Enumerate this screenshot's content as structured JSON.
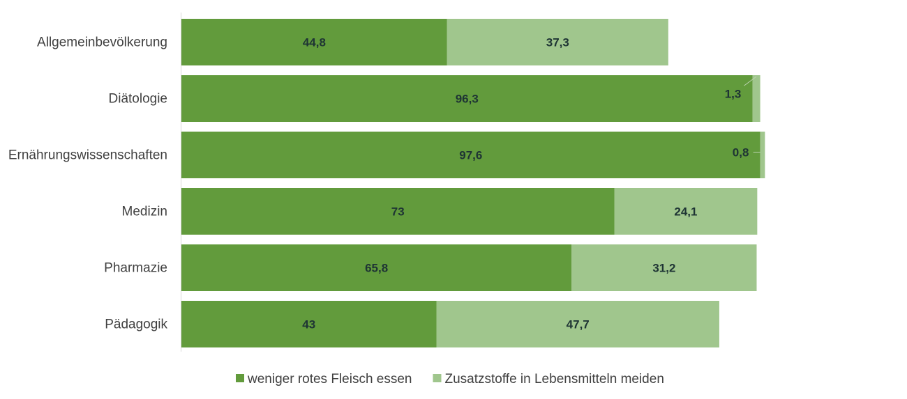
{
  "chart_data": {
    "type": "bar",
    "orientation": "horizontal",
    "stacked": true,
    "categories": [
      "Allgemeinbevölkerung",
      "Diätologie",
      "Ernährungswissenschaften",
      "Medizin",
      "Pharmazie",
      "Pädagogik"
    ],
    "series": [
      {
        "name": "weniger rotes Fleisch essen",
        "color": "#629b3c",
        "values": [
          44.8,
          96.3,
          97.6,
          73,
          65.8,
          43
        ],
        "labels": [
          "44,8",
          "96,3",
          "97,6",
          "73",
          "65,8",
          "43"
        ]
      },
      {
        "name": "Zusatzstoffe in Lebensmitteln meiden",
        "color": "#a0c68d",
        "values": [
          37.3,
          1.3,
          0.8,
          24.1,
          31.2,
          47.7
        ],
        "labels": [
          "37,3",
          "1,3",
          "0,8",
          "24,1",
          "31,2",
          "47,7"
        ]
      }
    ],
    "xlim": [
      0,
      120
    ],
    "grid": false,
    "legend_placement": "bottom"
  }
}
